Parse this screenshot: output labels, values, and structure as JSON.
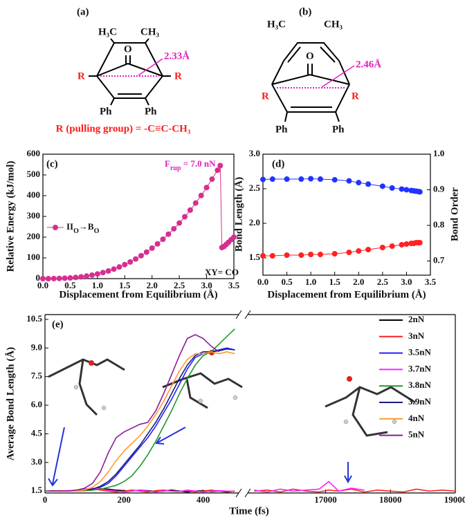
{
  "structures": {
    "a": {
      "label": "(a)",
      "methyl_left": "H₃C",
      "methyl_right": "CH₃",
      "oxygen": "O",
      "distance": "2.33Å",
      "r_left": "R",
      "r_right": "R",
      "ph_left": "Ph",
      "ph_right": "Ph",
      "caption": "R (pulling group) = -C≡C-CH₃"
    },
    "b": {
      "label": "(b)",
      "methyl_left": "H₃C",
      "methyl_right": "CH₃",
      "oxygen": "O",
      "distance": "2.46Å",
      "r_left": "R",
      "r_right": "R",
      "ph_left": "Ph",
      "ph_right": "Ph"
    }
  },
  "chart_data": [
    {
      "type": "line",
      "panel_label": "(c)",
      "ylabel": "Relative Energy (kJ/mol)",
      "xlabel": "Displacement from Equilibrium (Å)",
      "rupture_force": {
        "symbol": "F",
        "subscript": "rup",
        "text": " = 7.0 nN"
      },
      "legend_parts": [
        "II",
        "O",
        "→B",
        "O"
      ],
      "note": "XY= CO",
      "markers": true,
      "xlim": [
        0,
        3.5
      ],
      "xticks": [
        {
          "value": 0,
          "label": "0.0"
        },
        0.5,
        {
          "value": 1,
          "label": "1.0"
        },
        1.5,
        {
          "value": 2,
          "label": "2.0"
        },
        2.5,
        {
          "value": 3,
          "label": "3.0"
        },
        3.5
      ],
      "ylim": [
        0,
        600
      ],
      "yticks": [
        0,
        100,
        200,
        300,
        400,
        500,
        600
      ],
      "x": [
        0,
        0.1,
        0.2,
        0.3,
        0.4,
        0.5,
        0.6,
        0.7,
        0.8,
        0.9,
        1.0,
        1.1,
        1.2,
        1.3,
        1.4,
        1.5,
        1.6,
        1.7,
        1.8,
        1.9,
        2.0,
        2.1,
        2.2,
        2.3,
        2.4,
        2.5,
        2.6,
        2.7,
        2.8,
        2.9,
        3.0,
        3.1,
        3.2,
        3.25,
        3.28,
        3.32,
        3.36,
        3.4,
        3.45,
        3.5
      ],
      "series": [
        {
          "color": "#d62f8f",
          "values": [
            0,
            0,
            0.3,
            0.9,
            1.9,
            3.5,
            5.7,
            8.6,
            12.4,
            17,
            22.6,
            29.3,
            37,
            45.9,
            56.1,
            67.6,
            80.4,
            94.7,
            110.5,
            127.9,
            147,
            167.6,
            190,
            214.3,
            240.4,
            268,
            298.3,
            330.4,
            364.4,
            400.7,
            439,
            479.7,
            522.7,
            545,
            150,
            155,
            165,
            175,
            188,
            200
          ]
        }
      ]
    },
    {
      "type": "line",
      "panel_label": "(d)",
      "ylabel": "Bond Length (Å)",
      "y2label": "Bond Order",
      "xlabel": "Displacement from Equilibrium (Å)",
      "markers": true,
      "xlim": [
        0,
        3.5
      ],
      "xticks": [
        {
          "value": 0,
          "label": "0.0"
        },
        0.5,
        {
          "value": 1,
          "label": "1.0"
        },
        1.5,
        {
          "value": 2,
          "label": "2.0"
        },
        2.5,
        {
          "value": 3,
          "label": "3.0"
        },
        3.5
      ],
      "ylim": [
        1.25,
        3.0
      ],
      "yticks": [
        1.5,
        {
          "value": 2,
          "label": "2.0"
        },
        2.5,
        {
          "value": 3,
          "label": "3.0"
        }
      ],
      "y2lim": [
        0.66,
        1.0
      ],
      "y2ticks": [
        0.7,
        0.8,
        0.9,
        {
          "value": 1,
          "label": "1.0"
        }
      ],
      "x": [
        0,
        0.2,
        0.5,
        0.8,
        1.0,
        1.2,
        1.5,
        1.8,
        2.0,
        2.2,
        2.5,
        2.7,
        2.9,
        3.0,
        3.1,
        3.15,
        3.2,
        3.25,
        3.28
      ],
      "series": [
        {
          "color": "#ff2222",
          "axis": "y",
          "values": [
            1.53,
            1.53,
            1.54,
            1.54,
            1.55,
            1.55,
            1.56,
            1.58,
            1.6,
            1.62,
            1.65,
            1.67,
            1.69,
            1.7,
            1.71,
            1.71,
            1.72,
            1.72,
            1.72
          ]
        },
        {
          "color": "#2233ff",
          "axis": "y2",
          "values": [
            0.929,
            0.93,
            0.93,
            0.93,
            0.931,
            0.93,
            0.928,
            0.925,
            0.92,
            0.916,
            0.91,
            0.905,
            0.902,
            0.9,
            0.898,
            0.897,
            0.896,
            0.895,
            0.894
          ]
        }
      ]
    },
    {
      "type": "line",
      "panel_label": "(e)",
      "ylabel": "Average Bond Length (Å)",
      "xlabel": "Time (fs)",
      "markers": false,
      "ylim": [
        1.4,
        10.75
      ],
      "yticks": [
        1.5,
        {
          "value": 3,
          "label": "3.0"
        },
        4.5,
        {
          "value": 6,
          "label": "6.0"
        },
        7.5,
        {
          "value": 9,
          "label": "9.0"
        },
        10.5
      ],
      "x_segments": [
        {
          "xlim": [
            0,
            490
          ],
          "xticks": [
            0,
            200,
            400
          ]
        },
        {
          "xlim": [
            15800,
            19000
          ],
          "xticks": [
            17000,
            18000,
            19000
          ]
        }
      ],
      "x": [
        0,
        20,
        40,
        60,
        80,
        100,
        120,
        140,
        160,
        180,
        200,
        220,
        240,
        260,
        280,
        300,
        320,
        340,
        360,
        380,
        400,
        420,
        440,
        460,
        480,
        15900,
        16100,
        16300,
        16500,
        16700,
        16900,
        17050,
        17200,
        17400,
        17600,
        17800,
        18000,
        18200,
        18400,
        18600,
        18800,
        19000
      ],
      "series": [
        {
          "name": "2nN",
          "color": "#000000",
          "values": [
            1.5,
            1.51,
            1.5,
            1.52,
            1.5,
            1.55,
            1.6,
            1.62,
            1.6,
            1.55,
            1.52,
            1.5,
            1.55,
            1.52,
            1.48,
            1.5,
            1.55,
            1.5,
            1.45,
            1.5,
            1.52,
            1.48,
            1.5,
            1.45,
            1.5,
            null,
            null,
            null,
            null,
            null,
            null,
            null,
            null,
            null,
            null,
            null,
            null,
            null,
            null,
            null,
            null,
            null
          ]
        },
        {
          "name": "3nN",
          "color": "#ff2020",
          "values": [
            1.5,
            1.5,
            1.52,
            1.5,
            1.53,
            1.58,
            1.62,
            1.55,
            1.5,
            1.45,
            1.5,
            1.55,
            1.5,
            1.45,
            1.52,
            1.55,
            1.5,
            1.48,
            1.52,
            1.45,
            1.5,
            1.55,
            1.5,
            1.48,
            1.5,
            1.5,
            1.55,
            1.45,
            1.6,
            1.5,
            1.45,
            1.55,
            1.5,
            1.6,
            1.45,
            1.55,
            1.5,
            1.45,
            1.6,
            1.5,
            1.55,
            1.5
          ]
        },
        {
          "name": "3.5nN",
          "color": "#2020ff",
          "values": [
            1.5,
            1.5,
            1.5,
            1.5,
            1.5,
            1.55,
            1.6,
            1.7,
            1.9,
            2.3,
            2.8,
            3.3,
            3.8,
            4.3,
            4.9,
            5.6,
            6.3,
            7.1,
            7.9,
            8.5,
            8.7,
            8.8,
            8.9,
            9.0,
            8.9,
            null,
            null,
            null,
            null,
            null,
            null,
            null,
            null,
            null,
            null,
            null,
            null,
            null,
            null,
            null,
            null,
            null
          ]
        },
        {
          "name": "3.7nN",
          "color": "#ff20ff",
          "values": [
            1.5,
            1.5,
            1.5,
            1.52,
            1.55,
            1.6,
            1.65,
            1.6,
            1.55,
            1.5,
            1.45,
            1.5,
            1.55,
            1.5,
            1.45,
            1.52,
            1.5,
            1.48,
            1.55,
            1.5,
            1.45,
            1.5,
            1.52,
            1.5,
            1.48,
            1.55,
            1.45,
            1.6,
            1.5,
            1.55,
            1.6,
            2.0,
            1.5,
            1.65,
            1.55,
            null,
            null,
            null,
            null,
            null,
            null,
            null
          ]
        },
        {
          "name": "3.8nN",
          "color": "#22962a",
          "values": [
            1.5,
            1.5,
            1.5,
            1.5,
            1.5,
            1.52,
            1.55,
            1.6,
            1.7,
            1.8,
            2.0,
            2.3,
            2.8,
            3.4,
            4.1,
            4.9,
            5.7,
            6.6,
            7.4,
            8.1,
            8.6,
            8.8,
            9.2,
            9.6,
            10.0,
            null,
            null,
            null,
            null,
            null,
            null,
            null,
            null,
            null,
            null,
            null,
            null,
            null,
            null,
            null,
            null,
            null
          ]
        },
        {
          "name": "3.9nN",
          "color": "#1a1a80",
          "values": [
            1.5,
            1.5,
            1.5,
            1.5,
            1.5,
            1.55,
            1.6,
            1.75,
            2.0,
            2.4,
            2.9,
            3.4,
            3.9,
            4.5,
            5.1,
            5.8,
            6.6,
            7.4,
            8.1,
            8.6,
            8.8,
            8.8,
            8.85,
            8.95,
            8.9,
            null,
            null,
            null,
            null,
            null,
            null,
            null,
            null,
            null,
            null,
            null,
            null,
            null,
            null,
            null,
            null,
            null
          ]
        },
        {
          "name": "4nN",
          "color": "#ff9a2a",
          "values": [
            1.5,
            1.5,
            1.5,
            1.5,
            1.5,
            1.55,
            1.7,
            2.0,
            2.5,
            3.1,
            3.6,
            4.0,
            4.4,
            4.9,
            5.5,
            6.2,
            7.0,
            7.8,
            8.4,
            8.7,
            8.7,
            8.8,
            8.7,
            8.8,
            8.7,
            null,
            null,
            null,
            null,
            null,
            null,
            null,
            null,
            null,
            null,
            null,
            null,
            null,
            null,
            null,
            null,
            null
          ]
        },
        {
          "name": "5nN",
          "color": "#8a1a9a",
          "values": [
            1.5,
            1.5,
            1.5,
            1.5,
            1.55,
            1.65,
            1.9,
            2.5,
            3.5,
            4.3,
            4.6,
            4.8,
            5.0,
            5.1,
            5.7,
            6.6,
            7.6,
            8.6,
            9.5,
            9.7,
            9.5,
            9.1,
            8.8,
            null,
            null,
            null,
            null,
            null,
            null,
            null,
            null,
            null,
            null,
            null,
            null,
            null,
            null,
            null,
            null,
            null,
            null,
            null
          ]
        }
      ]
    }
  ]
}
